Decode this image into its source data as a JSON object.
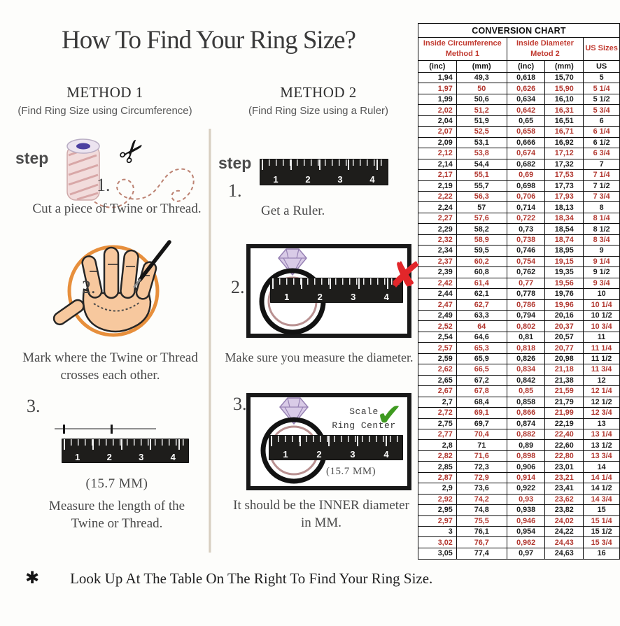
{
  "title": "How To Find Your Ring Size?",
  "method1": {
    "heading": "METHOD 1",
    "subheading": "(Find Ring Size using Circumference)",
    "step_label": "step",
    "step1": {
      "num": "1.",
      "caption": "Cut a piece of Twine or Thread."
    },
    "step2": {
      "num": "2.",
      "caption_line1": "Mark where the Twine or Thread",
      "caption_line2": "crosses each other."
    },
    "step3": {
      "num": "3.",
      "measurement": "(15.7 MM)",
      "caption_line1": "Measure the length of the",
      "caption_line2": "Twine or Thread."
    }
  },
  "method2": {
    "heading": "METHOD 2",
    "subheading": "(Find Ring Size using a Ruler)",
    "step_label": "step",
    "step1": {
      "num": "1.",
      "caption": "Get a Ruler."
    },
    "step2": {
      "num": "2.",
      "caption": "Make sure you measure the diameter."
    },
    "step3": {
      "num": "3.",
      "annotation_line1": "Scale",
      "annotation_line2": "Ring Center",
      "measurement": "(15.7 MM)",
      "caption_line1": "It should be the INNER diameter",
      "caption_line2": "in MM."
    }
  },
  "ruler": {
    "numbers": [
      "1",
      "2",
      "3",
      "4"
    ]
  },
  "footer": {
    "bullet": "✱",
    "text": "Look Up At The Table On The Right To Find Your Ring Size."
  },
  "icons": {
    "x_mark": "✘",
    "check_mark": "✔",
    "scissors": "✂"
  },
  "colors": {
    "table_red": "#b1362e",
    "header_red": "#c13a30",
    "x_red": "#e2262a",
    "check_green": "#3e9a20",
    "circle_orange": "#e78f3c"
  },
  "chart_data": {
    "type": "table",
    "title": "CONVERSION CHART",
    "column_groups": [
      {
        "label": "Inside Circumference",
        "sublabel": "Method 1"
      },
      {
        "label": "Inside Diameter",
        "sublabel": "Metod 2"
      },
      {
        "label": "US Sizes",
        "sublabel": ""
      }
    ],
    "columns": [
      "(inc)",
      "(mm)",
      "(inc)",
      "(mm)",
      "US"
    ],
    "rows": [
      [
        "1,94",
        "49,3",
        "0,618",
        "15,70",
        "5"
      ],
      [
        "1,97",
        "50",
        "0,626",
        "15,90",
        "5 1/4"
      ],
      [
        "1,99",
        "50,6",
        "0,634",
        "16,10",
        "5 1/2"
      ],
      [
        "2,02",
        "51,2",
        "0,642",
        "16,31",
        "5 3/4"
      ],
      [
        "2,04",
        "51,9",
        "0,65",
        "16,51",
        "6"
      ],
      [
        "2,07",
        "52,5",
        "0,658",
        "16,71",
        "6 1/4"
      ],
      [
        "2,09",
        "53,1",
        "0,666",
        "16,92",
        "6 1/2"
      ],
      [
        "2,12",
        "53,8",
        "0,674",
        "17,12",
        "6 3/4"
      ],
      [
        "2,14",
        "54,4",
        "0,682",
        "17,32",
        "7"
      ],
      [
        "2,17",
        "55,1",
        "0,69",
        "17,53",
        "7 1/4"
      ],
      [
        "2,19",
        "55,7",
        "0,698",
        "17,73",
        "7 1/2"
      ],
      [
        "2,22",
        "56,3",
        "0,706",
        "17,93",
        "7 3/4"
      ],
      [
        "2,24",
        "57",
        "0,714",
        "18,13",
        "8"
      ],
      [
        "2,27",
        "57,6",
        "0,722",
        "18,34",
        "8 1/4"
      ],
      [
        "2,29",
        "58,2",
        "0,73",
        "18,54",
        "8 1/2"
      ],
      [
        "2,32",
        "58,9",
        "0,738",
        "18,74",
        "8 3/4"
      ],
      [
        "2,34",
        "59,5",
        "0,746",
        "18,95",
        "9"
      ],
      [
        "2,37",
        "60,2",
        "0,754",
        "19,15",
        "9 1/4"
      ],
      [
        "2,39",
        "60,8",
        "0,762",
        "19,35",
        "9 1/2"
      ],
      [
        "2,42",
        "61,4",
        "0,77",
        "19,56",
        "9 3/4"
      ],
      [
        "2,44",
        "62,1",
        "0,778",
        "19,76",
        "10"
      ],
      [
        "2,47",
        "62,7",
        "0,786",
        "19,96",
        "10 1/4"
      ],
      [
        "2,49",
        "63,3",
        "0,794",
        "20,16",
        "10 1/2"
      ],
      [
        "2,52",
        "64",
        "0,802",
        "20,37",
        "10 3/4"
      ],
      [
        "2,54",
        "64,6",
        "0,81",
        "20,57",
        "11"
      ],
      [
        "2,57",
        "65,3",
        "0,818",
        "20,77",
        "11 1/4"
      ],
      [
        "2,59",
        "65,9",
        "0,826",
        "20,98",
        "11 1/2"
      ],
      [
        "2,62",
        "66,5",
        "0,834",
        "21,18",
        "11 3/4"
      ],
      [
        "2,65",
        "67,2",
        "0,842",
        "21,38",
        "12"
      ],
      [
        "2,67",
        "67,8",
        "0,85",
        "21,59",
        "12 1/4"
      ],
      [
        "2,7",
        "68,4",
        "0,858",
        "21,79",
        "12 1/2"
      ],
      [
        "2,72",
        "69,1",
        "0,866",
        "21,99",
        "12 3/4"
      ],
      [
        "2,75",
        "69,7",
        "0,874",
        "22,19",
        "13"
      ],
      [
        "2,77",
        "70,4",
        "0,882",
        "22,40",
        "13 1/4"
      ],
      [
        "2,8",
        "71",
        "0,89",
        "22,60",
        "13 1/2"
      ],
      [
        "2,82",
        "71,6",
        "0,898",
        "22,80",
        "13 3/4"
      ],
      [
        "2,85",
        "72,3",
        "0,906",
        "23,01",
        "14"
      ],
      [
        "2,87",
        "72,9",
        "0,914",
        "23,21",
        "14 1/4"
      ],
      [
        "2,9",
        "73,6",
        "0,922",
        "23,41",
        "14 1/2"
      ],
      [
        "2,92",
        "74,2",
        "0,93",
        "23,62",
        "14 3/4"
      ],
      [
        "2,95",
        "74,8",
        "0,938",
        "23,82",
        "15"
      ],
      [
        "2,97",
        "75,5",
        "0,946",
        "24,02",
        "15 1/4"
      ],
      [
        "3",
        "76,1",
        "0,954",
        "24,22",
        "15 1/2"
      ],
      [
        "3,02",
        "76,7",
        "0,962",
        "24,43",
        "15 3/4"
      ],
      [
        "3,05",
        "77,4",
        "0,97",
        "24,63",
        "16"
      ]
    ]
  }
}
